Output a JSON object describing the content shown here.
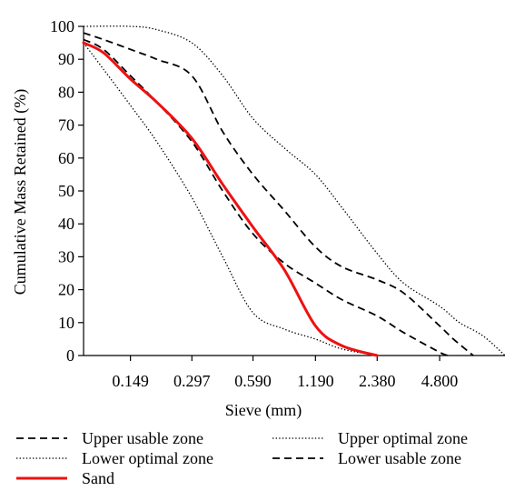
{
  "chart_data": {
    "type": "line",
    "title": "",
    "xlabel": "Sieve (mm)",
    "ylabel": "Cumulative Mass Retained (%)",
    "x_scale": "log",
    "categories": [
      "0.149",
      "0.297",
      "0.590",
      "1.190",
      "2.380",
      "4.800"
    ],
    "ylim": [
      0,
      100
    ],
    "yticks": [
      0,
      10,
      20,
      30,
      40,
      50,
      60,
      70,
      80,
      90,
      100
    ],
    "grid": false,
    "legend_placement": "bottom",
    "series": [
      {
        "name": "Upper usable zone",
        "style": "dashed",
        "color": "#000000",
        "points": [
          [
            0.088,
            98
          ],
          [
            0.11,
            96
          ],
          [
            0.149,
            93
          ],
          [
            0.2,
            90
          ],
          [
            0.297,
            85
          ],
          [
            0.42,
            68
          ],
          [
            0.59,
            55
          ],
          [
            0.84,
            44
          ],
          [
            1.19,
            33
          ],
          [
            1.6,
            27
          ],
          [
            2.38,
            23
          ],
          [
            3.2,
            19
          ],
          [
            4.8,
            9
          ],
          [
            5.6,
            5
          ],
          [
            7.0,
            0
          ]
        ]
      },
      {
        "name": "Upper optimal zone",
        "style": "dotted",
        "color": "#000000",
        "points": [
          [
            0.088,
            100
          ],
          [
            0.149,
            100
          ],
          [
            0.2,
            99
          ],
          [
            0.297,
            95
          ],
          [
            0.42,
            85
          ],
          [
            0.59,
            72
          ],
          [
            0.84,
            63
          ],
          [
            1.19,
            55
          ],
          [
            1.6,
            45
          ],
          [
            2.38,
            31
          ],
          [
            3.2,
            22
          ],
          [
            4.8,
            15
          ],
          [
            6.0,
            10
          ],
          [
            7.8,
            6
          ],
          [
            10.0,
            0
          ]
        ]
      },
      {
        "name": "Lower optimal zone",
        "style": "dotted",
        "color": "#000000",
        "points": [
          [
            0.088,
            95
          ],
          [
            0.11,
            87
          ],
          [
            0.149,
            76
          ],
          [
            0.2,
            65
          ],
          [
            0.297,
            48
          ],
          [
            0.42,
            30
          ],
          [
            0.59,
            13
          ],
          [
            0.84,
            8
          ],
          [
            1.19,
            5
          ],
          [
            1.6,
            2
          ],
          [
            2.38,
            0
          ]
        ]
      },
      {
        "name": "Lower usable zone",
        "style": "dashed",
        "color": "#000000",
        "points": [
          [
            0.088,
            96
          ],
          [
            0.11,
            93
          ],
          [
            0.149,
            85
          ],
          [
            0.2,
            77
          ],
          [
            0.297,
            65
          ],
          [
            0.42,
            50
          ],
          [
            0.59,
            37
          ],
          [
            0.84,
            28
          ],
          [
            1.19,
            22
          ],
          [
            1.6,
            17
          ],
          [
            2.38,
            12
          ],
          [
            3.2,
            7
          ],
          [
            4.8,
            1
          ],
          [
            5.3,
            0
          ]
        ]
      },
      {
        "name": "Sand",
        "style": "solid",
        "color": "#ee1111",
        "points": [
          [
            0.088,
            95
          ],
          [
            0.11,
            92
          ],
          [
            0.149,
            84
          ],
          [
            0.2,
            77
          ],
          [
            0.297,
            66
          ],
          [
            0.42,
            52
          ],
          [
            0.59,
            39
          ],
          [
            0.84,
            26
          ],
          [
            1.19,
            9
          ],
          [
            1.6,
            3
          ],
          [
            2.38,
            0
          ]
        ]
      }
    ]
  }
}
